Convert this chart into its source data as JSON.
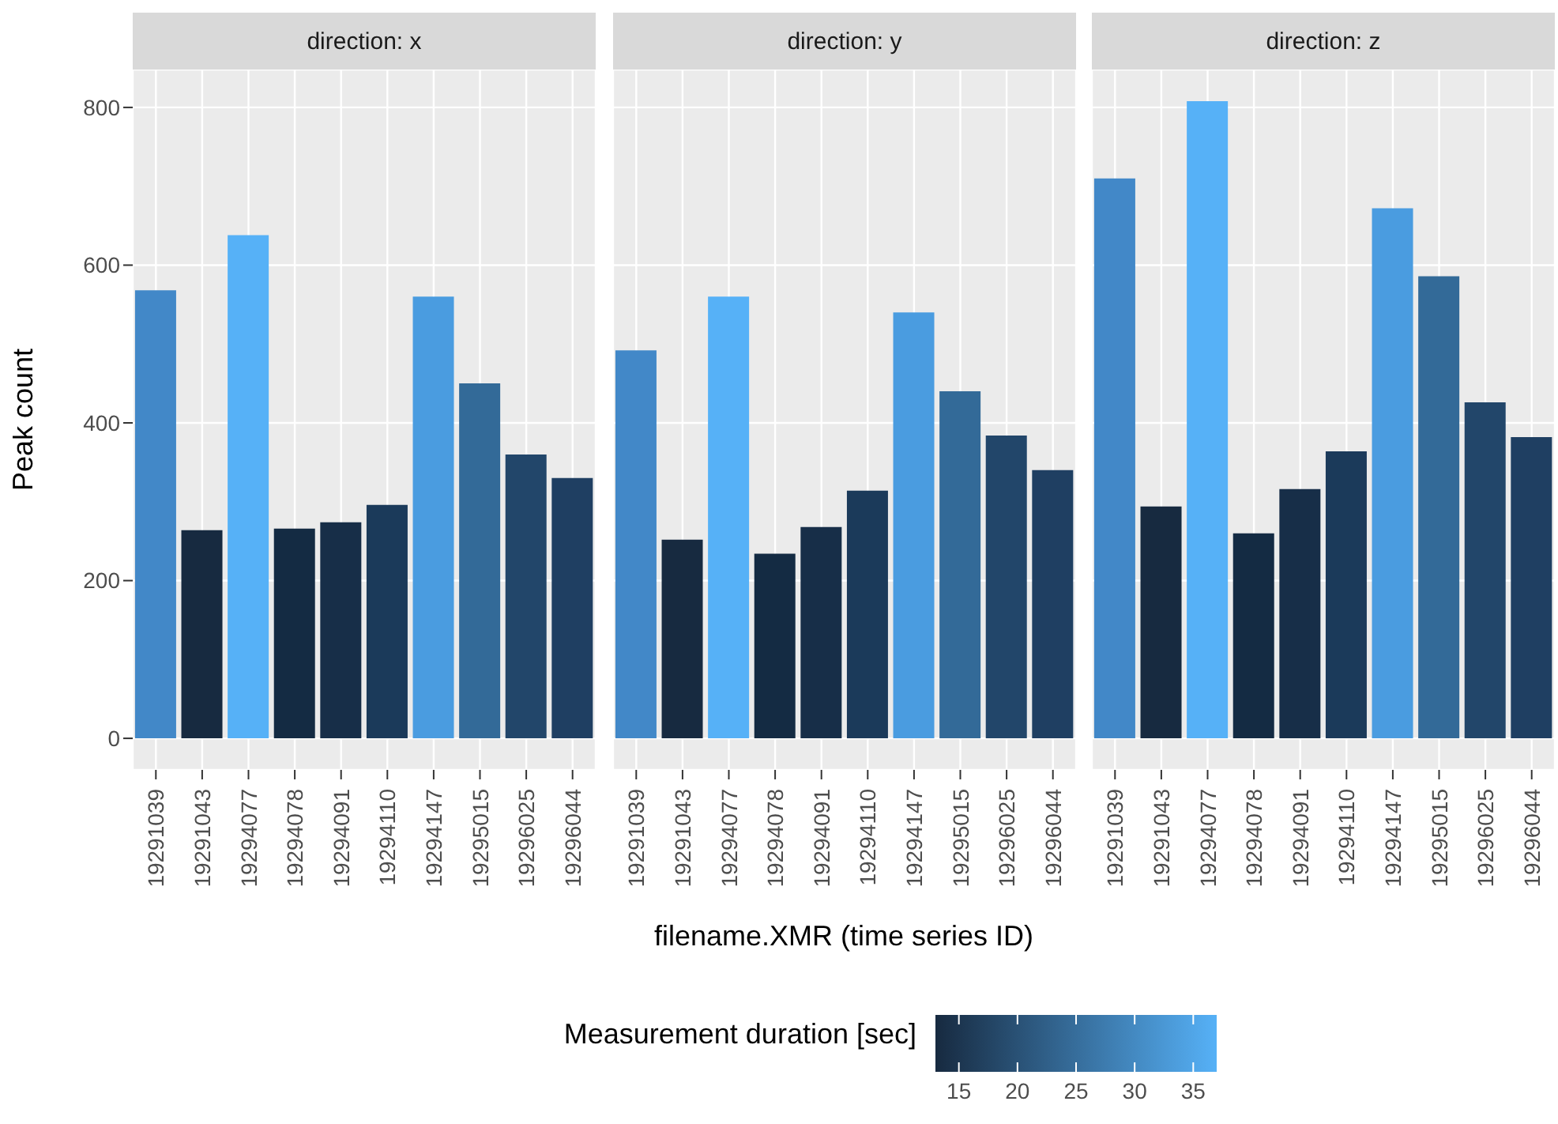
{
  "chart_data": [
    {
      "type": "bar",
      "title": "direction: x",
      "ylabel": "Peak count",
      "categories": [
        "19291039",
        "19291043",
        "19294077",
        "19294078",
        "19294091",
        "19294110",
        "19294147",
        "19295015",
        "19296025",
        "19296044"
      ],
      "values": [
        568,
        264,
        638,
        266,
        274,
        296,
        560,
        450,
        360,
        330
      ],
      "colors": [
        "#4288c8",
        "#172a40",
        "#56b1f7",
        "#142b43",
        "#172e48",
        "#1b3a5a",
        "#4a9ce0",
        "#336a98",
        "#22466a",
        "#1f3f62"
      ],
      "ylim": [
        -40,
        848
      ],
      "yticks": [
        0,
        200,
        400,
        600,
        800
      ],
      "grid": true
    },
    {
      "type": "bar",
      "title": "direction: y",
      "xlabel": "filename.XMR (time series ID)",
      "clabel": "Measurement duration [sec]",
      "clim": [
        13,
        37
      ],
      "cticks": [
        15,
        20,
        25,
        30,
        35
      ],
      "categories": [
        "19291039",
        "19291043",
        "19294077",
        "19294078",
        "19294091",
        "19294110",
        "19294147",
        "19295015",
        "19296025",
        "19296044"
      ],
      "values": [
        492,
        252,
        560,
        234,
        268,
        314,
        540,
        440,
        384,
        340
      ],
      "colors": [
        "#4288c8",
        "#172a40",
        "#56b1f7",
        "#142b43",
        "#172e48",
        "#1b3a5a",
        "#4a9ce0",
        "#336a98",
        "#22466a",
        "#1f3f62"
      ],
      "ylim": [
        -40,
        848
      ],
      "yticks": [
        0,
        200,
        400,
        600,
        800
      ],
      "grid": true,
      "tick_labels": "x"
    },
    {
      "type": "bar",
      "title": "direction: z",
      "categories": [
        "19291039",
        "19291043",
        "19294077",
        "19294078",
        "19294091",
        "19294110",
        "19294147",
        "19295015",
        "19296025",
        "19296044"
      ],
      "values": [
        710,
        294,
        808,
        260,
        316,
        364,
        672,
        586,
        426,
        382
      ],
      "colors": [
        "#4288c8",
        "#172a40",
        "#56b1f7",
        "#142b43",
        "#172e48",
        "#1b3a5a",
        "#4a9ce0",
        "#336a98",
        "#22466a",
        "#1f3f62"
      ],
      "ylim": [
        -40,
        848
      ],
      "yticks": [
        0,
        200,
        400,
        600,
        800
      ],
      "grid": true,
      "tick_labels": "x"
    }
  ]
}
